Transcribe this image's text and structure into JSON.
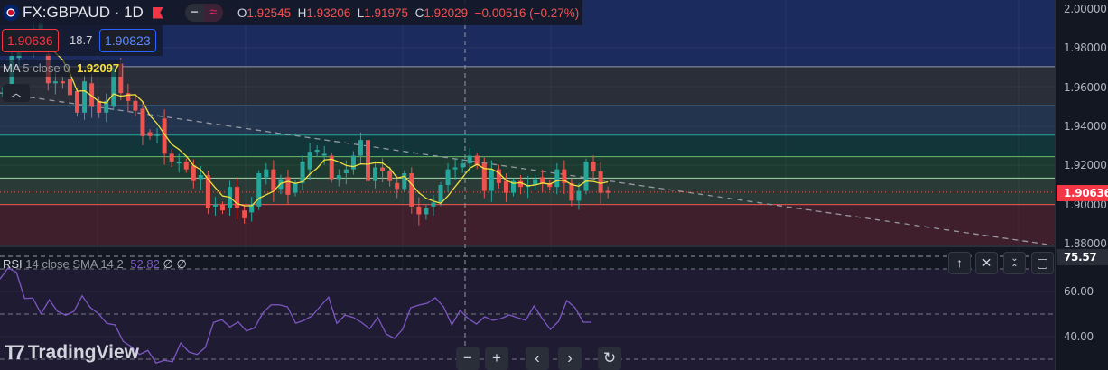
{
  "header": {
    "symbol": "FX:GBPAUD · 1D",
    "o_label": "O",
    "o": "1.92545",
    "h_label": "H",
    "h": "1.93206",
    "l_label": "L",
    "l": "1.91975",
    "c_label": "C",
    "c": "1.92029",
    "change": "−0.00516 (−0.27%)"
  },
  "trade": {
    "sell": "1.90636",
    "spread": "18.7",
    "buy": "1.90823"
  },
  "ma_legend": {
    "name": "MA",
    "params": "5 close 0",
    "value": "1.92097"
  },
  "rsi_legend": {
    "name": "RSI",
    "params": "14 close SMA 14 2",
    "value": "52.82",
    "extra1": "∅",
    "extra2": "∅"
  },
  "price_axis": {
    "ticks": [
      "2.00000",
      "1.98000",
      "1.96000",
      "1.94000",
      "1.92000",
      "1.90000",
      "1.88000"
    ],
    "last_price": "1.90636"
  },
  "rsi_axis": {
    "ticks": [
      "60.00",
      "40.00"
    ],
    "crosshair_value": "75.57"
  },
  "brand": "TradingView",
  "colors": {
    "up": "#26a69a",
    "down": "#ef5350",
    "ma": "#f0e040",
    "rsi": "#7e57c2"
  },
  "chart_data": {
    "type": "candlestick",
    "price_range": [
      1.88,
      2.0
    ],
    "levels": [
      1.9705,
      1.9505,
      1.9355,
      1.9245,
      1.9135,
      1.9
    ],
    "candles_oc": [
      [
        1.955,
        1.96
      ],
      [
        1.96,
        1.976
      ],
      [
        1.975,
        1.985
      ],
      [
        1.986,
        1.98
      ],
      [
        1.98,
        1.99
      ],
      [
        1.988,
        1.993
      ],
      [
        1.977,
        1.962
      ],
      [
        1.962,
        1.963
      ],
      [
        1.963,
        1.962
      ],
      [
        1.964,
        1.956
      ],
      [
        1.958,
        1.947
      ],
      [
        1.947,
        1.963
      ],
      [
        1.962,
        1.95
      ],
      [
        1.953,
        1.947
      ],
      [
        1.947,
        1.953
      ],
      [
        1.95,
        1.97
      ],
      [
        1.972,
        1.957
      ],
      [
        1.957,
        1.953
      ],
      [
        1.953,
        1.948
      ],
      [
        1.949,
        1.935
      ],
      [
        1.937,
        1.935
      ],
      [
        1.935,
        1.936
      ],
      [
        1.944,
        1.926
      ],
      [
        1.926,
        1.922
      ],
      [
        1.921,
        1.922
      ],
      [
        1.922,
        1.918
      ],
      [
        1.92,
        1.912
      ],
      [
        1.913,
        1.915
      ],
      [
        1.915,
        1.898
      ],
      [
        1.899,
        1.9
      ],
      [
        1.9,
        1.897
      ],
      [
        1.898,
        1.909
      ],
      [
        1.909,
        1.898
      ],
      [
        1.897,
        1.893
      ],
      [
        1.896,
        1.9
      ],
      [
        1.899,
        1.916
      ],
      [
        1.914,
        1.918
      ],
      [
        1.918,
        1.907
      ],
      [
        1.908,
        1.913
      ],
      [
        1.914,
        1.905
      ],
      [
        1.906,
        1.911
      ],
      [
        1.911,
        1.922
      ],
      [
        1.918,
        1.927
      ],
      [
        1.927,
        1.928
      ],
      [
        1.925,
        1.926
      ],
      [
        1.925,
        1.913
      ],
      [
        1.913,
        1.915
      ],
      [
        1.916,
        1.918
      ],
      [
        1.918,
        1.925
      ],
      [
        1.925,
        1.933
      ],
      [
        1.933,
        1.912
      ],
      [
        1.912,
        1.919
      ],
      [
        1.919,
        1.917
      ],
      [
        1.917,
        1.912
      ],
      [
        1.911,
        1.908
      ],
      [
        1.908,
        1.916
      ],
      [
        1.916,
        1.899
      ],
      [
        1.899,
        1.895
      ],
      [
        1.895,
        1.898
      ],
      [
        1.899,
        1.901
      ],
      [
        1.901,
        1.91
      ],
      [
        1.91,
        1.918
      ],
      [
        1.918,
        1.919
      ],
      [
        1.919,
        1.921
      ],
      [
        1.921,
        1.925
      ],
      [
        1.925,
        1.92
      ],
      [
        1.921,
        1.907
      ],
      [
        1.907,
        1.918
      ],
      [
        1.918,
        1.911
      ],
      [
        1.912,
        1.906
      ],
      [
        1.906,
        1.912
      ],
      [
        1.912,
        1.909
      ],
      [
        1.909,
        1.91
      ],
      [
        1.91,
        1.913
      ],
      [
        1.914,
        1.911
      ],
      [
        1.911,
        1.909
      ],
      [
        1.909,
        1.918
      ],
      [
        1.918,
        1.911
      ],
      [
        1.911,
        1.902
      ],
      [
        1.902,
        1.907
      ],
      [
        1.907,
        1.922
      ],
      [
        1.922,
        1.917
      ],
      [
        1.917,
        1.906
      ],
      [
        1.907,
        1.906
      ]
    ],
    "rsi": [
      65.5,
      70.5,
      68.5,
      56.9,
      57.1,
      50.1,
      56.3,
      51.2,
      49.5,
      51.2,
      58.1,
      52.9,
      50.1,
      45.9,
      45.2,
      37.9,
      35.5,
      32.1,
      33.9,
      28.3,
      29.5,
      28.9,
      37.2,
      33.2,
      32.1,
      35.2,
      46.3,
      47.5,
      44.3,
      46.5,
      42.5,
      43.9,
      50.5,
      54.1,
      54.1,
      53.2,
      45.9,
      47.2,
      49.2,
      53.5,
      57.5,
      45.9,
      49.5,
      48.5,
      46.3,
      43.5,
      48.5,
      41.2,
      39.2,
      43.2,
      52.8,
      54,
      54.8,
      57.2,
      53.2,
      45.2,
      51.6,
      48,
      45.6,
      48.8,
      47.2,
      48,
      49.6,
      48.4,
      47.2,
      53.6,
      48,
      43.2,
      46.8,
      56,
      52.8,
      46.4,
      46.4
    ],
    "rsi_range": [
      75.57,
      21.6
    ]
  }
}
